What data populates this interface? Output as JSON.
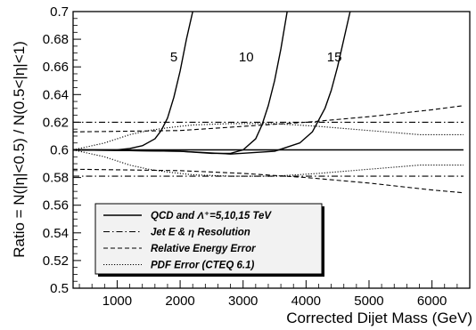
{
  "chart_data": {
    "type": "line",
    "title": "",
    "xlabel": "Corrected Dijet Mass (GeV)",
    "ylabel": "Ratio = N(|η|<0.5) / N(0.5<|η|<1)",
    "xlim": [
      300,
      6600
    ],
    "ylim": [
      0.5,
      0.7
    ],
    "x_ticks": [
      1000,
      2000,
      3000,
      4000,
      5000,
      6000
    ],
    "x_tick_labels": [
      "1000",
      "2000",
      "3000",
      "4000",
      "5000",
      "6000"
    ],
    "y_ticks": [
      0.5,
      0.52,
      0.54,
      0.56,
      0.58,
      0.6,
      0.62,
      0.64,
      0.66,
      0.68,
      0.7
    ],
    "y_tick_labels": [
      "0.5",
      "0.52",
      "0.54",
      "0.56",
      "0.58",
      "0.6",
      "0.62",
      "0.64",
      "0.66",
      "0.68",
      "0.7"
    ],
    "grid": false,
    "legend_position": "bottom-left",
    "legend": [
      {
        "label": "QCD and Λ⁺=5,10,15 TeV",
        "style": "solid"
      },
      {
        "label": "Jet E & η Resolution",
        "style": "dashdot"
      },
      {
        "label": "Relative Energy Error",
        "style": "dashed"
      },
      {
        "label": "PDF Error (CTEQ 6.1)",
        "style": "dotted"
      }
    ],
    "series": [
      {
        "style": "solid",
        "x": [
          300,
          6500
        ],
        "y": [
          0.6,
          0.6
        ]
      },
      {
        "style": "solid",
        "label": "5",
        "x": [
          300,
          1000,
          1200,
          1400,
          1600,
          1700,
          1800,
          1900,
          2000,
          2100,
          2200
        ],
        "y": [
          0.6,
          0.6,
          0.601,
          0.603,
          0.608,
          0.614,
          0.623,
          0.638,
          0.657,
          0.68,
          0.7
        ]
      },
      {
        "style": "solid",
        "label": "10",
        "x": [
          300,
          2000,
          2500,
          2800,
          3000,
          3200,
          3300,
          3400,
          3500,
          3600,
          3700
        ],
        "y": [
          0.6,
          0.599,
          0.5975,
          0.5975,
          0.6,
          0.608,
          0.618,
          0.632,
          0.65,
          0.673,
          0.7
        ]
      },
      {
        "style": "solid",
        "label": "15",
        "x": [
          300,
          2000,
          2800,
          3500,
          3900,
          4100,
          4300,
          4400,
          4500,
          4600,
          4700
        ],
        "y": [
          0.6,
          0.599,
          0.597,
          0.599,
          0.605,
          0.613,
          0.63,
          0.643,
          0.66,
          0.68,
          0.7
        ]
      },
      {
        "style": "dashdot",
        "x": [
          300,
          6500
        ],
        "y": [
          0.62,
          0.62
        ]
      },
      {
        "style": "dashdot",
        "x": [
          300,
          6500
        ],
        "y": [
          0.581,
          0.581
        ]
      },
      {
        "style": "dashed",
        "x": [
          300,
          2000,
          3000,
          4000,
          5000,
          6000,
          6500
        ],
        "y": [
          0.613,
          0.614,
          0.617,
          0.62,
          0.624,
          0.629,
          0.632
        ]
      },
      {
        "style": "dashed",
        "x": [
          300,
          2000,
          3000,
          4000,
          5000,
          6000,
          6500
        ],
        "y": [
          0.586,
          0.585,
          0.583,
          0.58,
          0.576,
          0.571,
          0.569
        ]
      },
      {
        "style": "dotted",
        "x": [
          300,
          800,
          1200,
          1500,
          1800,
          2200,
          2800,
          3500,
          4200,
          5000,
          5800,
          6500
        ],
        "y": [
          0.6,
          0.605,
          0.611,
          0.614,
          0.616,
          0.618,
          0.619,
          0.619,
          0.617,
          0.614,
          0.611,
          0.611
        ]
      },
      {
        "style": "dotted",
        "x": [
          300,
          800,
          1200,
          1500,
          1800,
          2200,
          2800,
          3500,
          4200,
          5000,
          5800,
          6500
        ],
        "y": [
          0.6,
          0.595,
          0.589,
          0.586,
          0.584,
          0.582,
          0.581,
          0.581,
          0.583,
          0.586,
          0.589,
          0.589
        ]
      }
    ],
    "annotations": [
      {
        "text": "5",
        "x": 1900,
        "y": 0.664
      },
      {
        "text": "10",
        "x": 3050,
        "y": 0.664
      },
      {
        "text": "15",
        "x": 4450,
        "y": 0.664
      }
    ]
  }
}
